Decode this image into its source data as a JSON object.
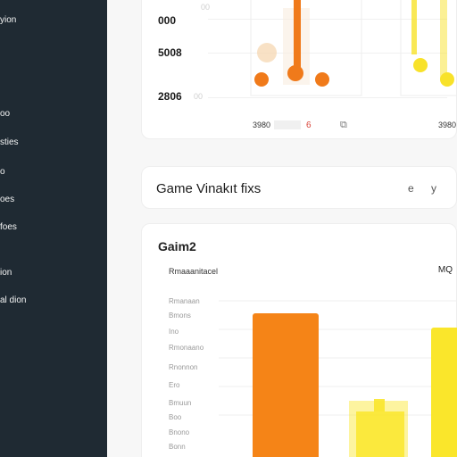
{
  "sidebar": {
    "items": [
      {
        "label": "yion"
      },
      {
        "label": "oo"
      },
      {
        "label": "sties"
      },
      {
        "label": "o"
      },
      {
        "label": "oes"
      },
      {
        "label": "foes"
      },
      {
        "label": "ion"
      },
      {
        "label": "al dion"
      }
    ]
  },
  "top_chart": {
    "y_ticks": [
      {
        "label": "000",
        "suffix": "00"
      },
      {
        "label": "5008",
        "suffix": ""
      },
      {
        "label": "2806",
        "suffix": "00"
      }
    ],
    "footer_left": "3980",
    "footer_accent": "6",
    "footer_icon": "copy-icon",
    "footer_right": "3980",
    "colors": {
      "orange": "#f07a1a",
      "yellow": "#f8e22a",
      "peach": "#f6d9b7"
    }
  },
  "title_bar": {
    "title": "Game Vinakıt fixs",
    "icon_1": "e",
    "icon_2": "y"
  },
  "bottom_chart": {
    "title": "Gaim2",
    "subtitle_left": "Rmaaanitacel",
    "subtitle_right": "MQ",
    "row_labels": [
      "Rmanaan",
      "Bmons",
      "Ino",
      "Rmonaano",
      "Rnonnon",
      "Ero",
      "Bmuun",
      "Boo",
      "Bnono",
      "Bonn"
    ],
    "colors": {
      "orange": "#f58417",
      "yellow": "#fae62b",
      "yellow_light": "#fbe94f"
    }
  }
}
